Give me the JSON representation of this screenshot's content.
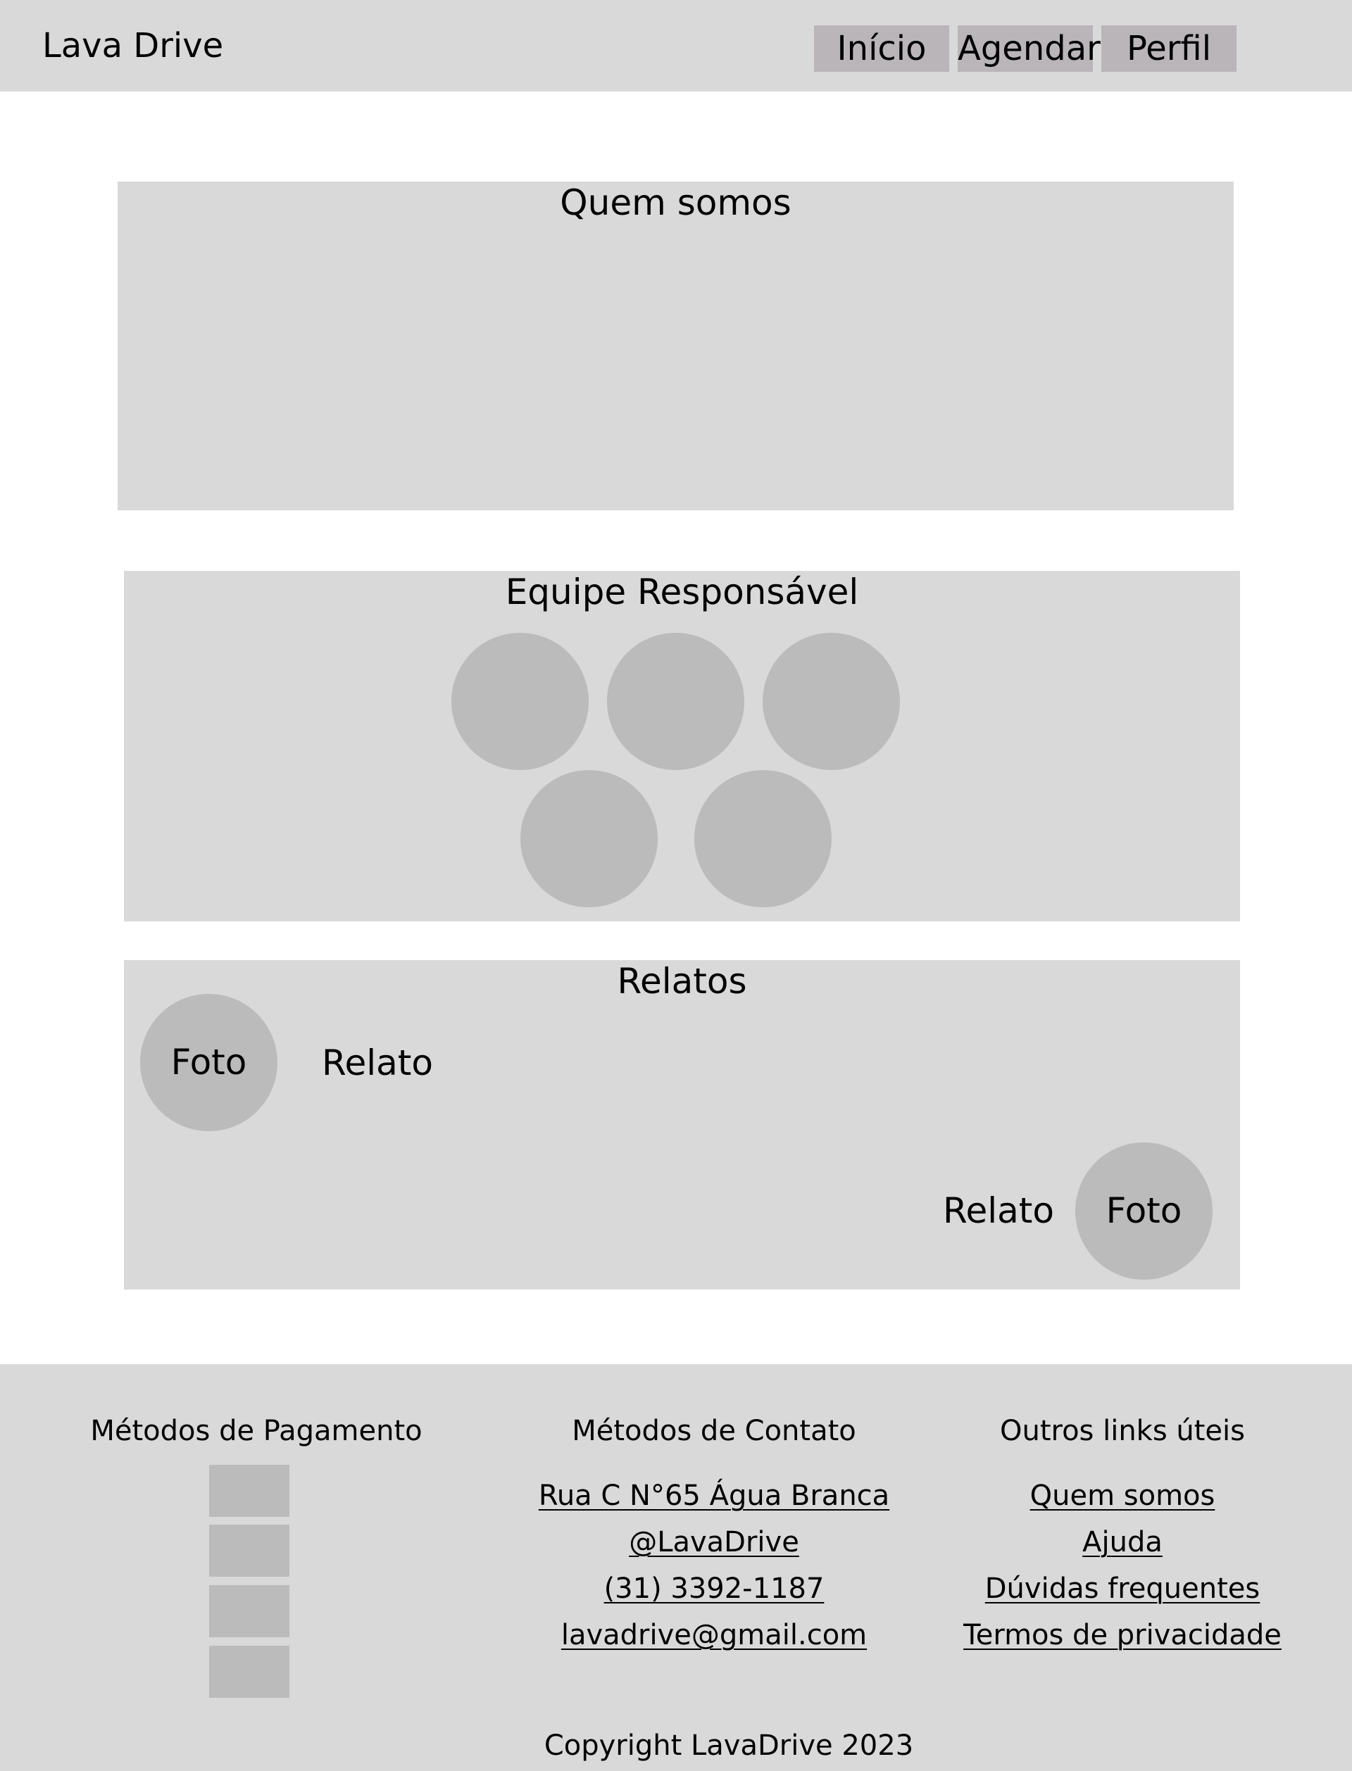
{
  "header": {
    "brand": "Lava Drive",
    "nav": {
      "inicio": "Início",
      "agendar": "Agendar",
      "perfil": "Perfil"
    }
  },
  "sections": {
    "about": {
      "title": "Quem somos"
    },
    "team": {
      "title": "Equipe Responsável",
      "member_count": 5
    },
    "testimonials": {
      "title": "Relatos",
      "items": [
        {
          "photo_label": "Foto",
          "text": "Relato"
        },
        {
          "photo_label": "Foto",
          "text": "Relato"
        }
      ]
    }
  },
  "footer": {
    "payment": {
      "heading": "Métodos de Pagamento",
      "method_count": 4
    },
    "contact": {
      "heading": "Métodos de Contato",
      "address": "Rua C N°65 Água Branca",
      "social": "@LavaDrive",
      "phone": "(31) 3392-1187",
      "email": "lavadrive@gmail.com"
    },
    "links": {
      "heading": "Outros links úteis",
      "items": [
        "Quem somos",
        "Ajuda",
        "Dúvidas frequentes",
        "Termos de privacidade"
      ]
    },
    "copyright": "Copyright LavaDrive 2023"
  },
  "colors": {
    "panel": "#d9d9d9",
    "nav_button": "#b9b5b9",
    "placeholder": "#bbbbbb",
    "background": "#ffffff",
    "text": "#000000"
  }
}
